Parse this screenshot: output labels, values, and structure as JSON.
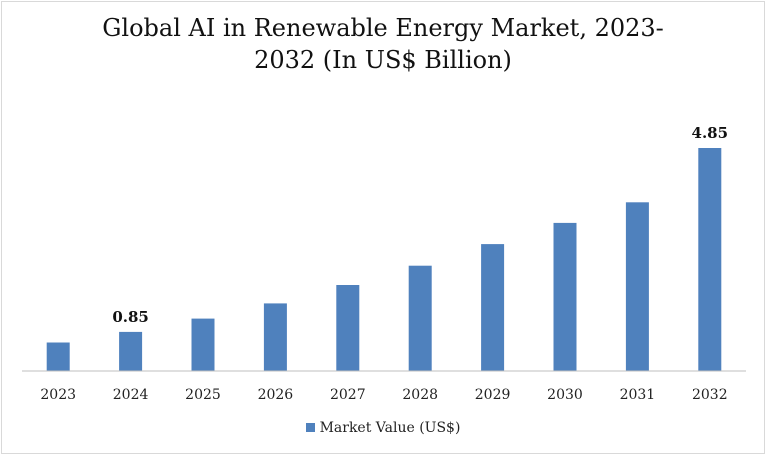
{
  "chart_data": {
    "type": "bar",
    "title_line1": "Global AI in Renewable Energy Market, 2023-",
    "title_line2": "2032 (In US$ Billion)",
    "categories": [
      "2023",
      "2024",
      "2025",
      "2026",
      "2027",
      "2028",
      "2029",
      "2030",
      "2031",
      "2032"
    ],
    "series": [
      {
        "name": "Market Value (US$)",
        "values": [
          0.62,
          0.85,
          1.14,
          1.47,
          1.87,
          2.29,
          2.76,
          3.22,
          3.67,
          4.85
        ],
        "color": "#4f81bd"
      }
    ],
    "data_labels": [
      {
        "index": 1,
        "text": "0.85"
      },
      {
        "index": 9,
        "text": "4.85"
      }
    ],
    "ylim": [
      0,
      4.85
    ],
    "grid": false,
    "legend_position": "bottom"
  }
}
